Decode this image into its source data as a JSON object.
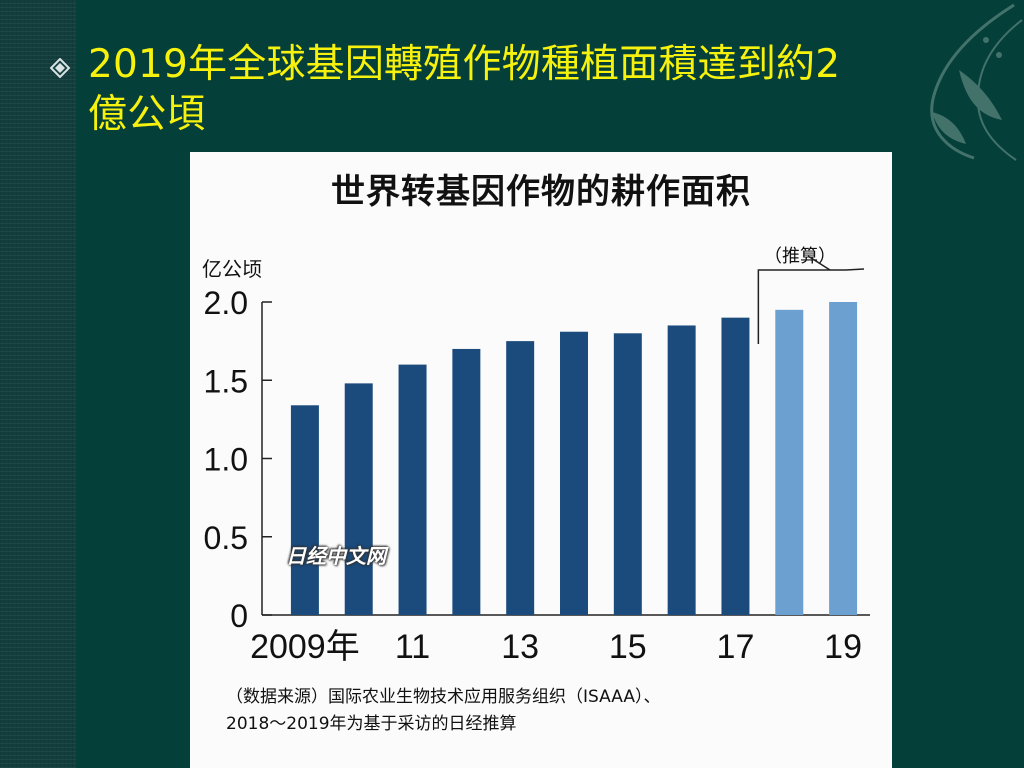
{
  "slide": {
    "title_line1": "2019年全球基因轉殖作物種植面積達到約2",
    "title_line2": "億公頃",
    "title_color": "#f6f10d",
    "background_color": "#053f3a",
    "bullet_icon": "diamond-bullet-icon"
  },
  "figure": {
    "estimate_label": "（推算）",
    "watermark": "日经中文网",
    "source_line1": "（数据来源）国际农业生物技术应用服务组织（ISAAA）、",
    "source_line2": "2018～2019年为基于采访的日经推算"
  },
  "chart_data": {
    "type": "bar",
    "title": "世界转基因作物的耕作面积",
    "ylabel": "亿公顷",
    "xlabel": "",
    "categories": [
      "2009年",
      "",
      "11",
      "",
      "13",
      "",
      "15",
      "",
      "17",
      "",
      "19"
    ],
    "values": [
      1.34,
      1.48,
      1.6,
      1.7,
      1.75,
      1.81,
      1.8,
      1.85,
      1.9,
      1.95,
      2.0
    ],
    "estimated": [
      false,
      false,
      false,
      false,
      false,
      false,
      false,
      false,
      false,
      true,
      true
    ],
    "ylim": [
      0,
      2.0
    ],
    "yticks": [
      "0",
      "0.5",
      "1.0",
      "1.5",
      "2.0"
    ],
    "ytick_values": [
      0,
      0.5,
      1.0,
      1.5,
      2.0
    ],
    "colors": {
      "actual": "#1a4b7c",
      "estimate": "#6ca0d0"
    },
    "grid": false,
    "legend": "none"
  }
}
